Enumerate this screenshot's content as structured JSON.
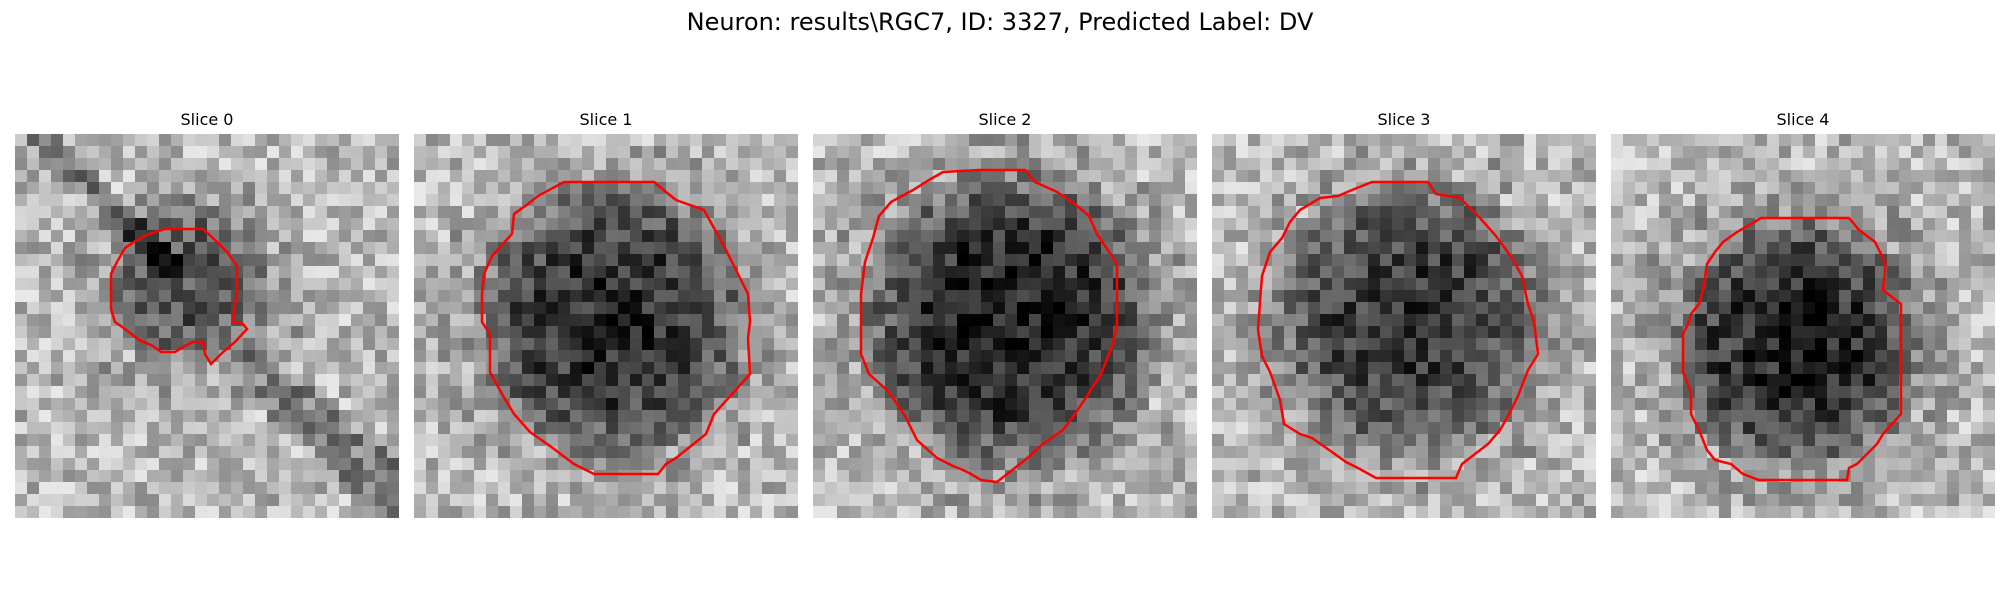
{
  "figure": {
    "title": "Neuron: results\\RGC7, ID: 3327, Predicted Label: DV"
  },
  "colors": {
    "contour": "#ff0000",
    "background": "#ffffff"
  },
  "panels": [
    {
      "title": "Slice 0"
    },
    {
      "title": "Slice 1"
    },
    {
      "title": "Slice 2"
    },
    {
      "title": "Slice 3"
    },
    {
      "title": "Slice 4"
    }
  ]
}
